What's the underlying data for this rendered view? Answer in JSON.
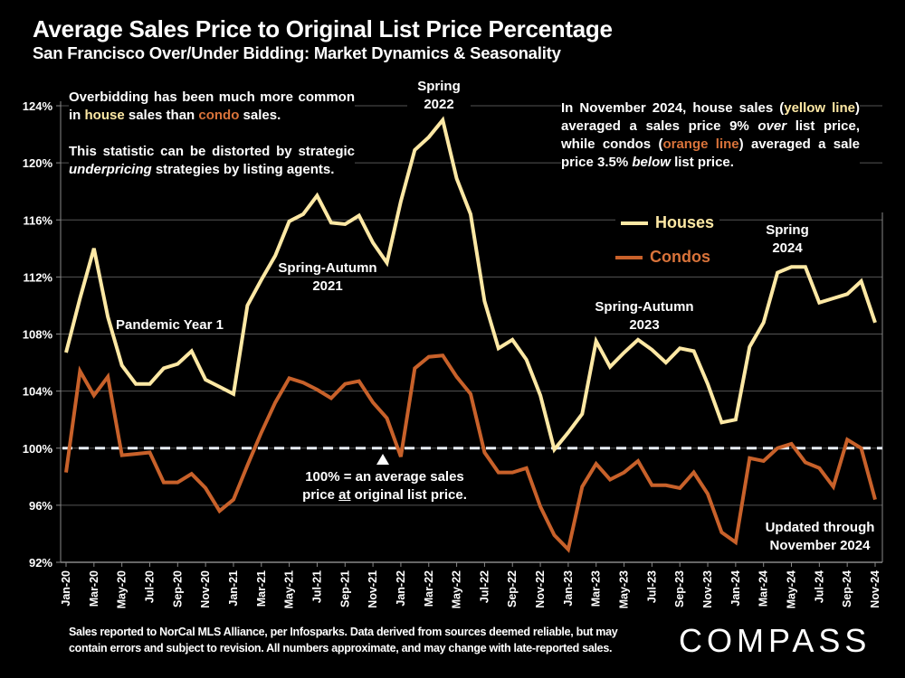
{
  "header": {
    "title": "Average Sales Price to Original List Price Percentage",
    "subtitle": "San Francisco Over/Under Bidding: Market Dynamics & Seasonality"
  },
  "colors": {
    "houses": "#fde8a4",
    "condos": "#c8612a",
    "background": "#000000",
    "reference_line": "#e8eef8"
  },
  "annotations": {
    "left_box": {
      "line1_a": "Overbidding has been much more common in ",
      "house_word": "house",
      "line1_b": " sales than ",
      "condo_word": "condo",
      "line1_c": " sales.",
      "line2_a": "This statistic can be distorted by strategic ",
      "underpricing": "underpricing",
      "line2_b": " strategies by listing agents."
    },
    "right_box": {
      "p1": "In November 2024, house sales (",
      "yellow_line": "yellow line",
      "p2": ") averaged a sales price 9% ",
      "over": "over",
      "p3": " list price, while condos (",
      "orange_line": "orange line",
      "p4": ") averaged a sale price 3.5% ",
      "below": "below",
      "p5": " list price."
    },
    "spring_2022": [
      "Spring",
      "2022"
    ],
    "spring_autumn_2021": [
      "Spring-Autumn",
      "2021"
    ],
    "pandemic_year_1": "Pandemic Year 1",
    "spring_autumn_2023": [
      "Spring-Autumn",
      "2023"
    ],
    "spring_2024": [
      "Spring",
      "2024"
    ],
    "reference_note": {
      "line1": "100% = an average sales",
      "line2_a": "price ",
      "line2_at": "at",
      "line2_b": " original list price."
    },
    "updated": [
      "Updated through",
      "November 2024"
    ]
  },
  "footer": {
    "disclaimer_line1": "Sales reported to NorCal MLS Alliance, per Infosparks. Data derived from sources deemed reliable, but may",
    "disclaimer_line2": "contain errors and subject to revision. All numbers approximate, and may change with late-reported sales.",
    "logo": "COMPASS"
  },
  "chart_data": {
    "type": "line",
    "title": "Average Sales Price to Original List Price Percentage",
    "subtitle": "San Francisco Over/Under Bidding: Market Dynamics & Seasonality",
    "xlabel": "",
    "ylabel": "",
    "ylim": [
      92,
      124
    ],
    "yticks": [
      92,
      96,
      100,
      104,
      108,
      112,
      116,
      120,
      124
    ],
    "ytick_labels": [
      "92%",
      "96%",
      "100%",
      "104%",
      "108%",
      "112%",
      "116%",
      "120%",
      "124%"
    ],
    "grid": true,
    "reference_line": 100,
    "legend_position": "center-right",
    "x": [
      "Jan-20",
      "Feb-20",
      "Mar-20",
      "Apr-20",
      "May-20",
      "Jun-20",
      "Jul-20",
      "Aug-20",
      "Sep-20",
      "Oct-20",
      "Nov-20",
      "Dec-20",
      "Jan-21",
      "Feb-21",
      "Mar-21",
      "Apr-21",
      "May-21",
      "Jun-21",
      "Jul-21",
      "Aug-21",
      "Sep-21",
      "Oct-21",
      "Nov-21",
      "Dec-21",
      "Jan-22",
      "Feb-22",
      "Mar-22",
      "Apr-22",
      "May-22",
      "Jun-22",
      "Jul-22",
      "Aug-22",
      "Sep-22",
      "Oct-22",
      "Nov-22",
      "Dec-22",
      "Jan-23",
      "Feb-23",
      "Mar-23",
      "Apr-23",
      "May-23",
      "Jun-23",
      "Jul-23",
      "Aug-23",
      "Sep-23",
      "Oct-23",
      "Nov-23",
      "Dec-23",
      "Jan-24",
      "Feb-24",
      "Mar-24",
      "Apr-24",
      "May-24",
      "Jun-24",
      "Jul-24",
      "Aug-24",
      "Sep-24",
      "Oct-24",
      "Nov-24"
    ],
    "xtick_labels": [
      "Jan-20",
      "Mar-20",
      "May-20",
      "Jul-20",
      "Sep-20",
      "Nov-20",
      "Jan-21",
      "Mar-21",
      "May-21",
      "Jul-21",
      "Sep-21",
      "Nov-21",
      "Jan-22",
      "Mar-22",
      "May-22",
      "Jul-22",
      "Sep-22",
      "Nov-22",
      "Jan-23",
      "Mar-23",
      "May-23",
      "Jul-23",
      "Sep-23",
      "Nov-23",
      "Jan-24",
      "Mar-24",
      "May-24",
      "Jul-24",
      "Sep-24",
      "Nov-24"
    ],
    "series": [
      {
        "name": "Houses",
        "color": "#fde8a4",
        "values": [
          106.7,
          110.5,
          114.0,
          109.2,
          105.8,
          104.5,
          104.5,
          105.6,
          105.9,
          106.8,
          104.8,
          104.3,
          103.8,
          110.0,
          111.8,
          113.5,
          115.9,
          116.4,
          117.7,
          115.8,
          115.7,
          116.3,
          114.4,
          113.0,
          117.3,
          120.9,
          121.8,
          123.0,
          118.9,
          116.4,
          110.3,
          107.0,
          107.6,
          106.2,
          103.7,
          99.9,
          101.1,
          102.4,
          107.5,
          105.7,
          106.7,
          107.6,
          106.9,
          106.0,
          107.0,
          106.8,
          104.5,
          101.8,
          102.0,
          107.1,
          108.8,
          112.3,
          112.7,
          112.7,
          110.2,
          110.5,
          110.8,
          111.7,
          108.8
        ]
      },
      {
        "name": "Condos",
        "color": "#c8612a",
        "values": [
          98.3,
          105.4,
          103.7,
          105.0,
          99.5,
          99.6,
          99.7,
          97.6,
          97.6,
          98.2,
          97.2,
          95.6,
          96.4,
          98.8,
          101.1,
          103.2,
          104.9,
          104.6,
          104.1,
          103.5,
          104.5,
          104.7,
          103.2,
          102.1,
          99.4,
          105.6,
          106.4,
          106.5,
          105.0,
          103.8,
          99.7,
          98.3,
          98.3,
          98.6,
          95.9,
          93.9,
          92.9,
          97.3,
          98.9,
          97.8,
          98.3,
          99.1,
          97.4,
          97.4,
          97.2,
          98.3,
          96.8,
          94.1,
          93.4,
          99.3,
          99.1,
          100.0,
          100.3,
          99.0,
          98.6,
          97.3,
          100.6,
          100.0,
          96.4
        ]
      }
    ]
  }
}
